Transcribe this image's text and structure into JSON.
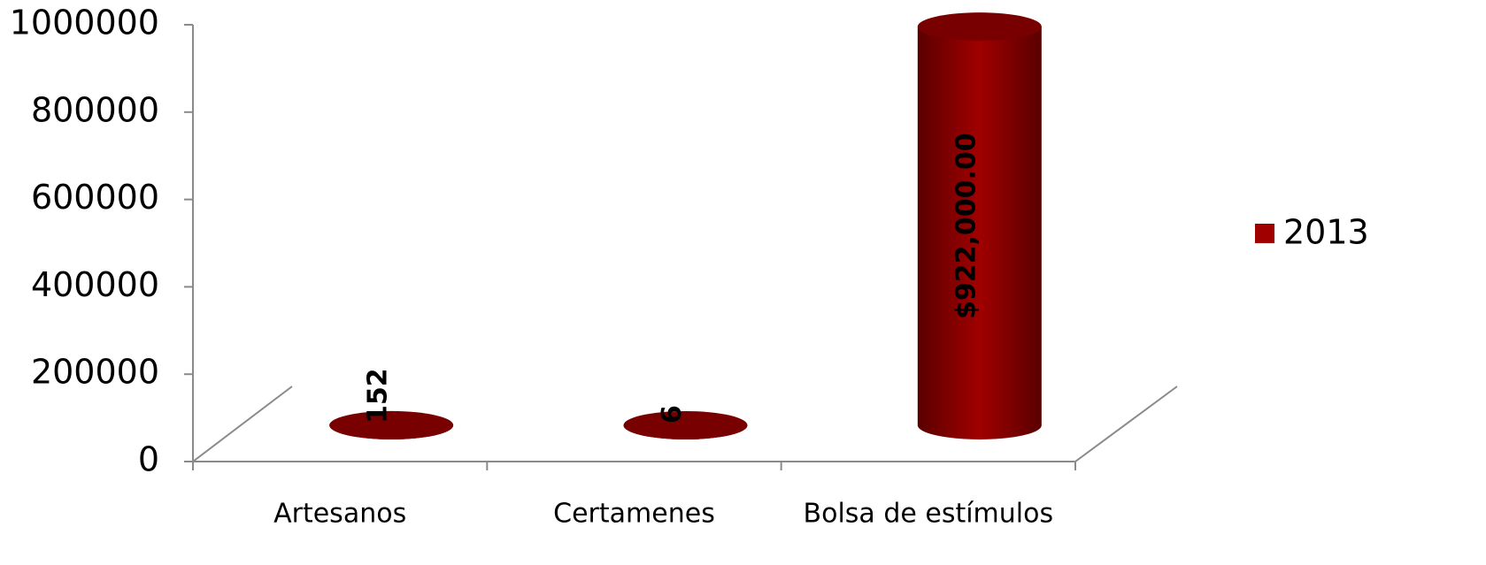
{
  "chart_data": {
    "type": "bar",
    "categories": [
      "Artesanos",
      "Certamenes",
      "Bolsa de estímulos"
    ],
    "series": [
      {
        "name": "2013",
        "color": "#a00000",
        "values": [
          152,
          6,
          922000
        ],
        "value_labels": [
          "152",
          "6",
          "$922,000.00"
        ]
      }
    ],
    "ylim": [
      0,
      1000000
    ],
    "yticks": [
      0,
      200000,
      400000,
      600000,
      800000,
      1000000
    ],
    "legend": "right"
  }
}
